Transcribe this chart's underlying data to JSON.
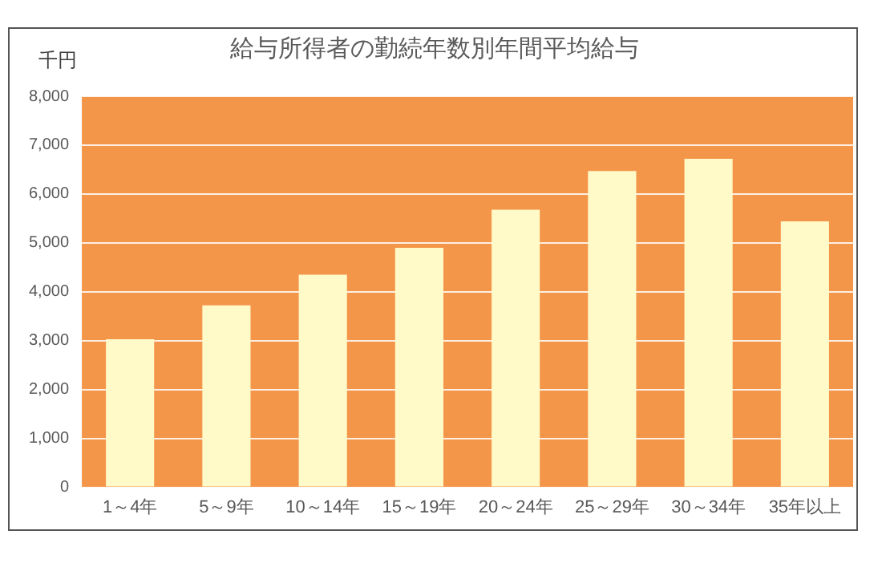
{
  "chart_data": {
    "type": "bar",
    "title": "給与所得者の勤続年数別年間平均給与",
    "ylabel": "千円",
    "categories": [
      "1～4年",
      "5～9年",
      "10～14年",
      "15～19年",
      "20～24年",
      "25～29年",
      "30～34年",
      "35年以上"
    ],
    "values": [
      3030,
      3720,
      4350,
      4900,
      5680,
      6470,
      6720,
      5440
    ],
    "color": "#fffac8",
    "ylim": [
      0,
      8000
    ],
    "yticks": [
      {
        "value": 0,
        "label": "0"
      },
      {
        "value": 1000,
        "label": "1,000"
      },
      {
        "value": 2000,
        "label": "2,000"
      },
      {
        "value": 3000,
        "label": "3,000"
      },
      {
        "value": 4000,
        "label": "4,000"
      },
      {
        "value": 5000,
        "label": "5,000"
      },
      {
        "value": 6000,
        "label": "6,000"
      },
      {
        "value": 7000,
        "label": "7,000"
      },
      {
        "value": 8000,
        "label": "8,000"
      }
    ],
    "grid": "y",
    "legend": false
  }
}
